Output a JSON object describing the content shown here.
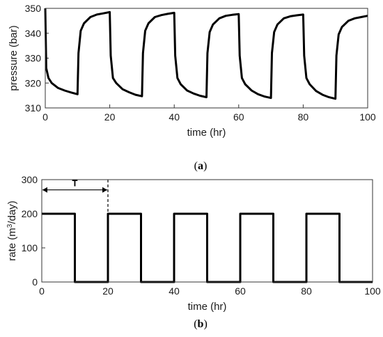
{
  "chart_data": [
    {
      "type": "line",
      "panel_label": "a",
      "xlabel": "time (hr)",
      "ylabel": "pressure (bar)",
      "xlim": [
        0,
        100
      ],
      "ylim": [
        310,
        350
      ],
      "xticks": [
        0,
        20,
        40,
        60,
        80,
        100
      ],
      "yticks": [
        310,
        320,
        330,
        340,
        350
      ],
      "grid": false,
      "series": [
        {
          "values": [
            [
              0,
              350
            ],
            [
              0.3,
              326
            ],
            [
              1,
              322
            ],
            [
              2,
              320
            ],
            [
              4,
              318
            ],
            [
              6,
              317
            ],
            [
              8,
              316.2
            ],
            [
              10,
              315.5
            ],
            [
              10.3,
              332
            ],
            [
              11,
              341
            ],
            [
              12,
              344
            ],
            [
              14,
              346.5
            ],
            [
              16,
              347.5
            ],
            [
              18,
              348
            ],
            [
              20,
              348.5
            ],
            [
              20.3,
              331
            ],
            [
              21,
              322
            ],
            [
              22,
              320
            ],
            [
              24,
              317.5
            ],
            [
              26,
              316.3
            ],
            [
              28,
              315.3
            ],
            [
              30,
              314.7
            ],
            [
              30.3,
              332
            ],
            [
              31,
              341
            ],
            [
              32,
              344
            ],
            [
              34,
              346.5
            ],
            [
              36,
              347.3
            ],
            [
              38,
              347.8
            ],
            [
              40,
              348.2
            ],
            [
              40.3,
              331
            ],
            [
              41,
              322
            ],
            [
              42,
              319.5
            ],
            [
              44,
              317
            ],
            [
              46,
              315.8
            ],
            [
              48,
              314.9
            ],
            [
              50,
              314.3
            ],
            [
              50.3,
              332
            ],
            [
              51,
              340.5
            ],
            [
              52,
              343.5
            ],
            [
              54,
              346
            ],
            [
              56,
              347
            ],
            [
              58,
              347.4
            ],
            [
              60,
              347.7
            ],
            [
              60.3,
              331
            ],
            [
              61,
              322
            ],
            [
              62,
              319.5
            ],
            [
              64,
              317
            ],
            [
              66,
              315.5
            ],
            [
              68,
              314.6
            ],
            [
              70,
              314
            ],
            [
              70.3,
              332
            ],
            [
              71,
              340.5
            ],
            [
              72,
              343.5
            ],
            [
              74,
              346
            ],
            [
              76,
              346.8
            ],
            [
              78,
              347.2
            ],
            [
              80,
              347.5
            ],
            [
              80.3,
              331
            ],
            [
              81,
              322
            ],
            [
              82,
              319.5
            ],
            [
              84,
              316.8
            ],
            [
              86,
              315.3
            ],
            [
              88,
              314.3
            ],
            [
              90,
              313.7
            ],
            [
              90.3,
              331
            ],
            [
              91,
              339.5
            ],
            [
              92,
              342.5
            ],
            [
              94,
              345
            ],
            [
              96,
              346
            ],
            [
              98,
              346.5
            ],
            [
              100,
              347
            ]
          ]
        }
      ]
    },
    {
      "type": "line",
      "panel_label": "b",
      "xlabel": "time (hr)",
      "ylabel_main": "rate (m",
      "ylabel_sup": "3",
      "ylabel_tail": "/day)",
      "xlim": [
        0,
        100
      ],
      "ylim": [
        0,
        300
      ],
      "xticks": [
        0,
        20,
        40,
        60,
        80,
        100
      ],
      "yticks": [
        0,
        100,
        200,
        300
      ],
      "grid": false,
      "series": [
        {
          "values": [
            [
              0,
              200
            ],
            [
              10,
              200
            ],
            [
              10,
              0
            ],
            [
              20,
              0
            ],
            [
              20,
              200
            ],
            [
              30,
              200
            ],
            [
              30,
              0
            ],
            [
              40,
              0
            ],
            [
              40,
              200
            ],
            [
              50,
              200
            ],
            [
              50,
              0
            ],
            [
              60,
              0
            ],
            [
              60,
              200
            ],
            [
              70,
              200
            ],
            [
              70,
              0
            ],
            [
              80,
              0
            ],
            [
              80,
              200
            ],
            [
              90,
              200
            ],
            [
              90,
              0
            ],
            [
              100,
              0
            ]
          ]
        }
      ],
      "annotations": {
        "period_label": "T",
        "period_start": 0,
        "period_end": 20,
        "period_y": 270,
        "dashed_x": 20,
        "dashed_from": 100,
        "dashed_to": 300
      }
    }
  ]
}
